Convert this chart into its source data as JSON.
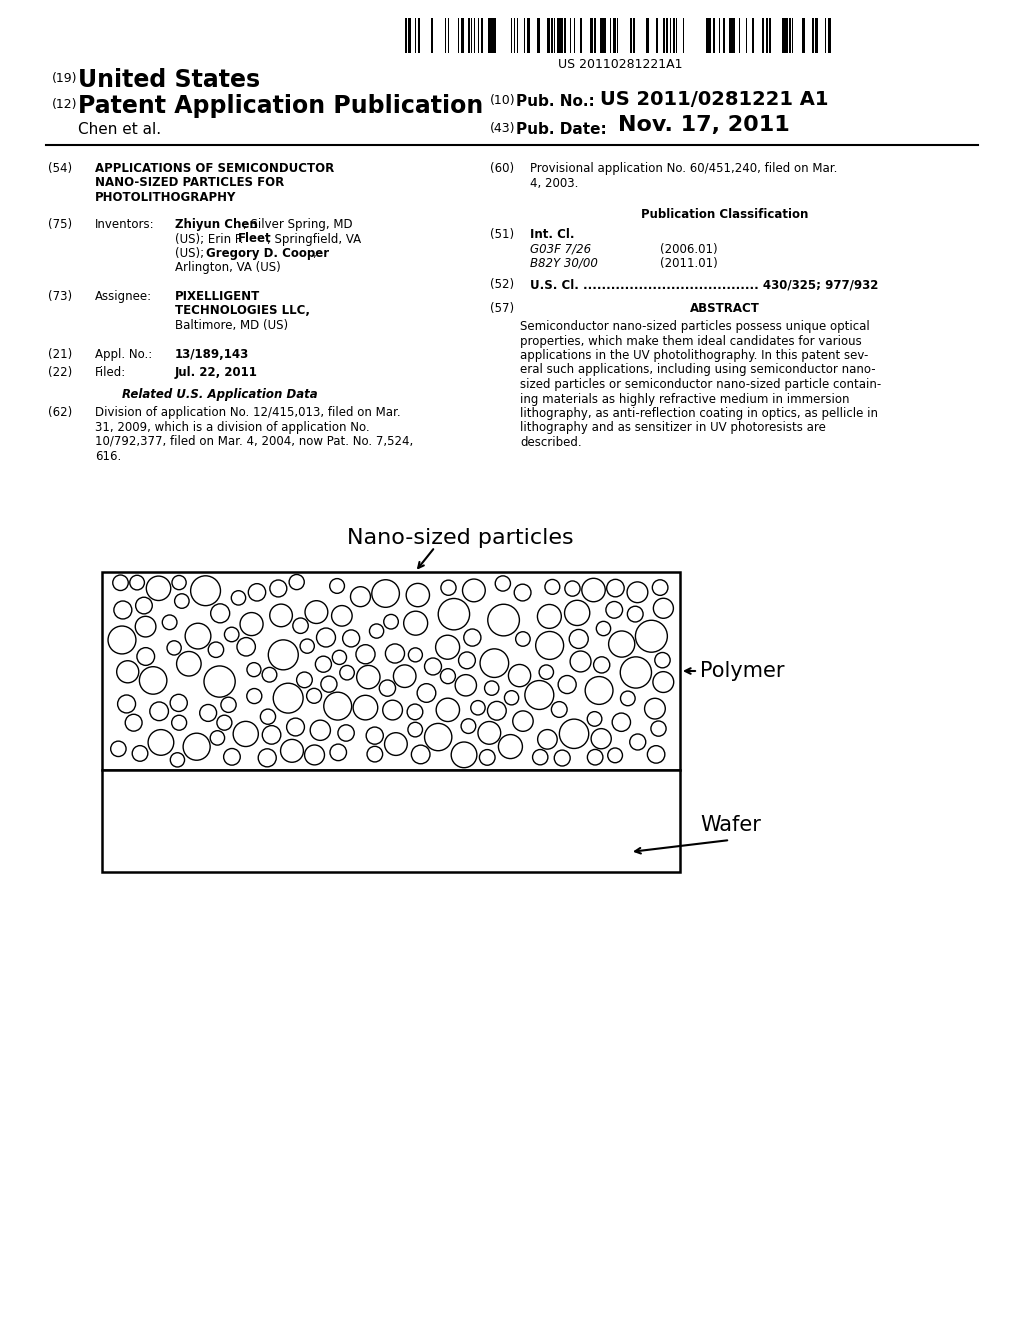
{
  "bg_color": "#ffffff",
  "barcode_text": "US 20110281221A1",
  "pub_no_value": "US 2011/0281221 A1",
  "author": "Chen et al.",
  "pub_date_value": "Nov. 17, 2011",
  "diagram_label_particles": "Nano-sized particles",
  "diagram_label_polymer": "Polymer",
  "diagram_label_wafer": "Wafer"
}
